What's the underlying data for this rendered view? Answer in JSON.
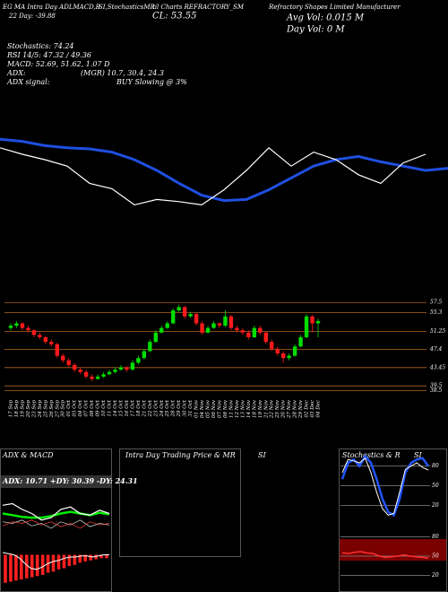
{
  "header": {
    "t1": "EG MA Intra Day ADLMACD,B",
    "t2": "SI,StochasticsMR",
    "t3": "til Charts REFRACTORY_SM",
    "t4": "Refractory Shapes Limited Manufacturer",
    "t5": "22 Day: -39.88",
    "cl": "CL: 53.55",
    "avgvol": "Avg Vol: 0.015 M",
    "dayvol": "Day Vol: 0 M",
    "stoch": "Stochastics: 74.24",
    "rsi": "RSI 14/5: 47.32 / 49.36",
    "macd": "MACD: 52.69, 51.62, 1.07 D",
    "adx": "ADX:",
    "mgr": "(MGR) 10.7, 30.4, 24.3",
    "adxsig": "ADX signal:",
    "buy": "BUY Slowing @ 3%"
  },
  "panels": {
    "p1": "ADX & MACD",
    "p2": "Intra Day Trading Price & MR",
    "p2b": "SI",
    "p3": "Stochastics & R",
    "p3b": "SI",
    "adxline": "ADX: 10.71 +DY: 30.39 -DY: 24.31"
  },
  "chart_data": [
    {
      "type": "line",
      "ylim": [
        0,
        100
      ],
      "series": [
        {
          "color": "#1f4fe0",
          "width": 3,
          "values": [
            79,
            77,
            73,
            71,
            70,
            67,
            60,
            50,
            38,
            27,
            22,
            23,
            32,
            43,
            54,
            60,
            63,
            58,
            54,
            50,
            52
          ]
        },
        {
          "color": "#ffffff",
          "width": 1.2,
          "values": [
            71,
            65,
            60,
            54,
            38,
            33,
            18,
            23,
            21,
            18,
            32,
            50,
            71,
            54,
            67,
            60,
            46,
            38,
            57,
            65,
            null
          ]
        }
      ]
    },
    {
      "type": "candlestick",
      "ylim": [
        37.6,
        58.9
      ],
      "yticks": [
        57.5,
        55.3,
        51.25,
        47.4,
        43.45,
        39.5,
        38.5
      ],
      "grid": true,
      "grid_color": "#b5651d",
      "up_color": "#00dd00",
      "down_color": "#ff1a1a",
      "categories": [
        "17 Sep",
        "18 Sep",
        "19 Sep",
        "20 Sep",
        "23 Sep",
        "24 Sep",
        "25 Sep",
        "26 Sep",
        "27 Sep",
        "30 Sep",
        "01 Oct",
        "03 Oct",
        "04 Oct",
        "07 Oct",
        "08 Oct",
        "09 Oct",
        "10 Oct",
        "11 Oct",
        "14 Oct",
        "15 Oct",
        "16 Oct",
        "17 Oct",
        "18 Oct",
        "21 Oct",
        "22 Oct",
        "23 Oct",
        "24 Oct",
        "25 Oct",
        "28 Oct",
        "29 Oct",
        "30 Oct",
        "31 Oct",
        "01 Nov",
        "04 Nov",
        "05 Nov",
        "06 Nov",
        "07 Nov",
        "08 Nov",
        "11 Nov",
        "12 Nov",
        "13 Nov",
        "14 Nov",
        "18 Nov",
        "19 Nov",
        "21 Nov",
        "22 Nov",
        "25 Nov",
        "26 Nov",
        "27 Nov",
        "28 Nov",
        "29 Nov",
        "02 Dec",
        "03 Dec",
        "04 Dec"
      ],
      "ohlc": [
        [
          52,
          53,
          51.5,
          52.5
        ],
        [
          52.5,
          53.5,
          52,
          53
        ],
        [
          53,
          53.2,
          51.5,
          52
        ],
        [
          52,
          52.5,
          51,
          51.5
        ],
        [
          51.5,
          51.8,
          50,
          50.5
        ],
        [
          50.5,
          51,
          49.5,
          50
        ],
        [
          50,
          50.2,
          48.5,
          49
        ],
        [
          49,
          49.5,
          48,
          48.5
        ],
        [
          48.5,
          48.8,
          45.5,
          46
        ],
        [
          46,
          46.5,
          44.5,
          45
        ],
        [
          45,
          45.5,
          43.5,
          44
        ],
        [
          44,
          44.5,
          42.5,
          43
        ],
        [
          43,
          43.5,
          42,
          42.5
        ],
        [
          42.5,
          43,
          41,
          41.5
        ],
        [
          41.5,
          42,
          40.5,
          41
        ],
        [
          41,
          42,
          40.8,
          41.5
        ],
        [
          41.5,
          42.5,
          41.2,
          42
        ],
        [
          42,
          43,
          41.8,
          42.5
        ],
        [
          42.5,
          43.5,
          42.2,
          43
        ],
        [
          43,
          44,
          42.8,
          43.5
        ],
        [
          43.5,
          43.8,
          42.5,
          43
        ],
        [
          43,
          45,
          42.8,
          44.5
        ],
        [
          44.5,
          46,
          44.2,
          45.5
        ],
        [
          45.5,
          47.5,
          45.2,
          47
        ],
        [
          47,
          49.5,
          46.8,
          49
        ],
        [
          49,
          51.5,
          48.8,
          51
        ],
        [
          51,
          52.5,
          50.8,
          52
        ],
        [
          52,
          53.5,
          51.8,
          53
        ],
        [
          53,
          56.2,
          52.8,
          55.8
        ],
        [
          55.8,
          57,
          55.5,
          56.5
        ],
        [
          56.5,
          56.8,
          54,
          54.5
        ],
        [
          54.5,
          55.5,
          54.2,
          55
        ],
        [
          55,
          55.2,
          52.5,
          53
        ],
        [
          53,
          53.5,
          50.5,
          51
        ],
        [
          51,
          52.5,
          50.8,
          52
        ],
        [
          52,
          53.5,
          51.8,
          53
        ],
        [
          53,
          53.2,
          52,
          52.5
        ],
        [
          52.5,
          55.8,
          52.2,
          54.5
        ],
        [
          54.5,
          54.8,
          51.5,
          52
        ],
        [
          52,
          52.5,
          51,
          51.5
        ],
        [
          51.5,
          52,
          50.5,
          51
        ],
        [
          51,
          51.5,
          49.5,
          50
        ],
        [
          50,
          52.5,
          49.8,
          52
        ],
        [
          52,
          52.5,
          50.5,
          51
        ],
        [
          51,
          51.2,
          48.5,
          49
        ],
        [
          49,
          49.5,
          47,
          47.5
        ],
        [
          47.5,
          48,
          46,
          46.5
        ],
        [
          46.5,
          47,
          44.5,
          45.5
        ],
        [
          45.5,
          46.5,
          45,
          46
        ],
        [
          46,
          48.5,
          45.8,
          48
        ],
        [
          48,
          50.5,
          47.8,
          50
        ],
        [
          50,
          55,
          49.8,
          54.5
        ],
        [
          54.5,
          54.8,
          51,
          53
        ],
        [
          53,
          54,
          50,
          53.5
        ]
      ]
    },
    {
      "type": "line",
      "ylim": [
        0,
        60
      ],
      "series": [
        {
          "color": "#00ee00",
          "width": 2.5,
          "values": [
            30,
            28,
            26,
            25,
            25,
            27,
            30,
            32,
            30,
            28,
            31,
            29
          ]
        },
        {
          "color": "#ffffff",
          "width": 1.2,
          "values": [
            40,
            42,
            35,
            30,
            22,
            25,
            35,
            38,
            30,
            28,
            34,
            30
          ]
        },
        {
          "color": "#dddddd",
          "width": 0.7,
          "values": [
            20,
            18,
            22,
            15,
            18,
            12,
            20,
            16,
            22,
            14,
            18,
            16
          ]
        },
        {
          "color": "#ff4444",
          "width": 0.7,
          "values": [
            15,
            20,
            18,
            22,
            16,
            20,
            14,
            18,
            12,
            20,
            16,
            18
          ]
        }
      ]
    },
    {
      "type": "bar",
      "ylim": [
        -3,
        1
      ],
      "color": "#ff2020",
      "values": [
        -2.5,
        -2.4,
        -2.3,
        -2.2,
        -2.1,
        -2,
        -1.9,
        -1.8,
        -1.6,
        -1.5,
        -1.3,
        -1.2,
        -1,
        -0.9,
        -0.7,
        -0.6,
        -0.5,
        -0.4,
        -0.3,
        -0.3
      ],
      "series": [
        {
          "color": "#ffffff",
          "width": 1,
          "values": [
            0.2,
            0.1,
            0,
            -0.3,
            -0.8,
            -1.2,
            -1.3,
            -1.1,
            -0.8,
            -0.6,
            -0.5,
            -0.3,
            -0.2,
            -0.2,
            -0.1,
            -0.1,
            -0.2,
            -0.1,
            0,
            0
          ]
        }
      ]
    },
    {
      "type": "line",
      "ylim": [
        0,
        100
      ],
      "yticks": [
        80,
        50,
        20
      ],
      "grid": true,
      "grid_color": "#888888",
      "series": [
        {
          "color": "#2255ff",
          "width": 2.5,
          "values": [
            60,
            85,
            90,
            80,
            95,
            85,
            60,
            30,
            10,
            5,
            30,
            70,
            85,
            90,
            92,
            80
          ]
        },
        {
          "color": "#ffffff",
          "width": 1,
          "values": [
            70,
            90,
            88,
            85,
            92,
            70,
            40,
            15,
            5,
            8,
            40,
            75,
            80,
            85,
            78,
            74
          ]
        }
      ]
    },
    {
      "type": "line",
      "ylim": [
        0,
        100
      ],
      "yticks": [
        80,
        50,
        20
      ],
      "grid": true,
      "grid_color": "#888888",
      "series": [
        {
          "color": "#ff3030",
          "width": 1.5,
          "values": [
            55,
            54,
            56,
            57,
            55,
            54,
            50,
            48,
            49,
            50,
            52,
            50,
            49,
            48,
            47
          ]
        }
      ]
    }
  ]
}
